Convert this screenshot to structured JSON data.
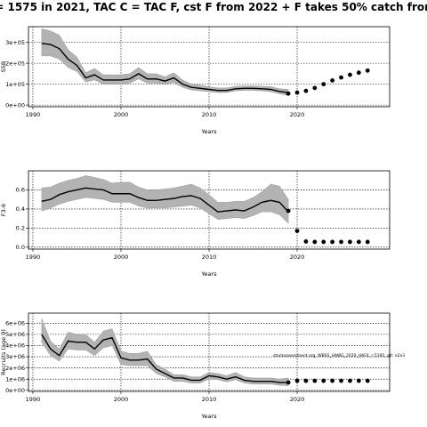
{
  "figure": {
    "title": "= 1575 in 2021, TAC C = TAC F, cst F from 2022 + F takes 50% catch fron",
    "annotation": "stockassessment.org, WBSS_HAWG_2020_HAF4, r 5195, git: e2a3"
  },
  "chart_data": [
    {
      "type": "line",
      "name": "ssb-panel",
      "xlabel": "Years",
      "ylabel": "SSB",
      "xlim": [
        1989.5,
        2030.5
      ],
      "ylim": [
        -8000,
        375000
      ],
      "x_ticks": [
        1990,
        2000,
        2010,
        2020
      ],
      "y_ticks": [
        0,
        100000,
        200000,
        300000
      ],
      "y_tick_labels": [
        "0e+00",
        "1e+05",
        "2e+05",
        "3e+05"
      ],
      "grid": true,
      "history": {
        "years": [
          1991,
          1992,
          1993,
          1994,
          1995,
          1996,
          1997,
          1998,
          1999,
          2000,
          2001,
          2002,
          2003,
          2004,
          2005,
          2006,
          2007,
          2008,
          2009,
          2010,
          2011,
          2012,
          2013,
          2014,
          2015,
          2016,
          2017,
          2018,
          2019
        ],
        "estimate": [
          295000,
          290000,
          270000,
          220000,
          190000,
          130000,
          145000,
          120000,
          120000,
          120000,
          125000,
          150000,
          125000,
          125000,
          115000,
          130000,
          100000,
          85000,
          80000,
          75000,
          70000,
          70000,
          78000,
          80000,
          80000,
          78000,
          75000,
          65000,
          60000
        ],
        "lower": [
          235000,
          235000,
          220000,
          180000,
          160000,
          110000,
          120000,
          100000,
          100000,
          100000,
          105000,
          125000,
          105000,
          105000,
          100000,
          108000,
          85000,
          72000,
          68000,
          64000,
          60000,
          60000,
          68000,
          70000,
          70000,
          68000,
          64000,
          54000,
          45000
        ],
        "upper": [
          365000,
          355000,
          335000,
          265000,
          230000,
          155000,
          175000,
          145000,
          145000,
          145000,
          150000,
          180000,
          150000,
          150000,
          135000,
          155000,
          120000,
          100000,
          95000,
          88000,
          82000,
          82000,
          90000,
          92000,
          92000,
          90000,
          88000,
          78000,
          75000
        ]
      },
      "forecast": {
        "years": [
          2019,
          2020,
          2021,
          2022,
          2023,
          2024,
          2025,
          2026,
          2027,
          2028
        ],
        "values": [
          55000,
          60000,
          68000,
          82000,
          100000,
          118000,
          132000,
          145000,
          155000,
          165000
        ]
      }
    },
    {
      "type": "line",
      "name": "f-panel",
      "xlabel": "Years",
      "ylabel": "F3-6",
      "xlim": [
        1989.5,
        2030.5
      ],
      "ylim": [
        -0.02,
        0.8
      ],
      "x_ticks": [
        1990,
        2000,
        2010,
        2020
      ],
      "y_ticks": [
        0,
        0.2,
        0.4,
        0.6
      ],
      "y_tick_labels": [
        "0.0",
        "0.2",
        "0.4",
        "0.6"
      ],
      "grid": true,
      "history": {
        "years": [
          1991,
          1992,
          1993,
          1994,
          1995,
          1996,
          1997,
          1998,
          1999,
          2000,
          2001,
          2002,
          2003,
          2004,
          2005,
          2006,
          2007,
          2008,
          2009,
          2010,
          2011,
          2012,
          2013,
          2014,
          2015,
          2016,
          2017,
          2018,
          2019
        ],
        "estimate": [
          0.48,
          0.5,
          0.55,
          0.58,
          0.6,
          0.62,
          0.61,
          0.6,
          0.56,
          0.56,
          0.56,
          0.52,
          0.49,
          0.49,
          0.5,
          0.51,
          0.53,
          0.54,
          0.51,
          0.44,
          0.37,
          0.38,
          0.39,
          0.38,
          0.42,
          0.47,
          0.49,
          0.47,
          0.37
        ],
        "lower": [
          0.38,
          0.41,
          0.45,
          0.48,
          0.5,
          0.52,
          0.51,
          0.5,
          0.47,
          0.47,
          0.47,
          0.43,
          0.41,
          0.41,
          0.41,
          0.42,
          0.43,
          0.44,
          0.41,
          0.35,
          0.29,
          0.3,
          0.31,
          0.3,
          0.33,
          0.37,
          0.37,
          0.34,
          0.25
        ],
        "upper": [
          0.62,
          0.63,
          0.67,
          0.7,
          0.72,
          0.75,
          0.73,
          0.71,
          0.67,
          0.68,
          0.68,
          0.63,
          0.6,
          0.6,
          0.61,
          0.62,
          0.64,
          0.66,
          0.62,
          0.55,
          0.47,
          0.47,
          0.48,
          0.48,
          0.52,
          0.58,
          0.66,
          0.64,
          0.5
        ]
      },
      "forecast": {
        "years": [
          2019,
          2020,
          2021,
          2022,
          2023,
          2024,
          2025,
          2026,
          2027,
          2028
        ],
        "values": [
          0.38,
          0.17,
          0.06,
          0.055,
          0.055,
          0.055,
          0.055,
          0.055,
          0.055,
          0.055
        ]
      }
    },
    {
      "type": "line",
      "name": "recruitment-panel",
      "xlabel": "Years",
      "ylabel": "Recruits (age 0)",
      "xlim": [
        1989.5,
        2030.5
      ],
      "ylim": [
        -100000,
        6900000
      ],
      "x_ticks": [
        1990,
        2000,
        2010,
        2020
      ],
      "y_ticks": [
        0,
        1000000,
        2000000,
        3000000,
        4000000,
        5000000,
        6000000
      ],
      "y_tick_labels": [
        "0e+00",
        "1e+06",
        "2e+06",
        "3e+06",
        "4e+06",
        "5e+06",
        "6e+06"
      ],
      "grid": true,
      "history": {
        "years": [
          1991,
          1992,
          1993,
          1994,
          1995,
          1996,
          1997,
          1998,
          1999,
          2000,
          2001,
          2002,
          2003,
          2004,
          2005,
          2006,
          2007,
          2008,
          2009,
          2010,
          2011,
          2012,
          2013,
          2014,
          2015,
          2016,
          2017,
          2018,
          2019
        ],
        "estimate": [
          5000000,
          3700000,
          3100000,
          4400000,
          4300000,
          4300000,
          3700000,
          4500000,
          4700000,
          2900000,
          2700000,
          2700000,
          2800000,
          1900000,
          1500000,
          1100000,
          1100000,
          900000,
          900000,
          1300000,
          1200000,
          1000000,
          1200000,
          900000,
          800000,
          800000,
          800000,
          700000,
          700000
        ],
        "lower": [
          4300000,
          3100000,
          2600000,
          3700000,
          3600000,
          3600000,
          3100000,
          3800000,
          4000000,
          2300000,
          2200000,
          2200000,
          2200000,
          1500000,
          1200000,
          800000,
          800000,
          650000,
          650000,
          1000000,
          950000,
          750000,
          950000,
          650000,
          550000,
          550000,
          550000,
          450000,
          400000
        ],
        "upper": [
          6400000,
          4400000,
          3700000,
          5200000,
          5000000,
          5000000,
          4300000,
          5300000,
          5500000,
          3500000,
          3300000,
          3300000,
          3500000,
          2300000,
          1900000,
          1400000,
          1400000,
          1200000,
          1200000,
          1600000,
          1500000,
          1300000,
          1600000,
          1200000,
          1100000,
          1100000,
          1100000,
          1000000,
          1100000
        ]
      },
      "forecast": {
        "years": [
          2019,
          2020,
          2021,
          2022,
          2023,
          2024,
          2025,
          2026,
          2027,
          2028
        ],
        "values": [
          700000,
          850000,
          850000,
          850000,
          850000,
          850000,
          850000,
          850000,
          850000,
          850000
        ]
      }
    }
  ]
}
